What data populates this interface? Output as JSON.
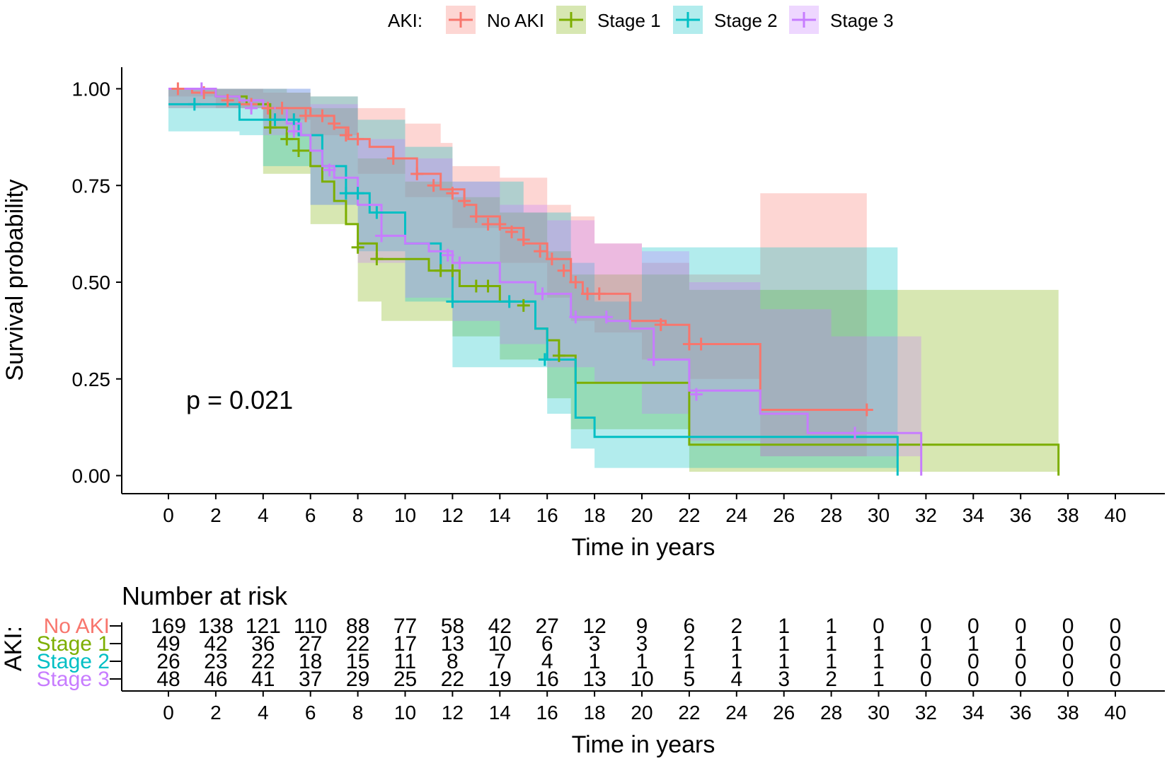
{
  "chart_data": {
    "type": "line",
    "subtype": "kaplan-meier",
    "legend": {
      "title": "AKI:",
      "position": "top",
      "entries": [
        "No AKI",
        "Stage 1",
        "Stage 2",
        "Stage 3"
      ]
    },
    "ylabel": "Survival probability",
    "xlabel": "Time in years",
    "xlim": [
      0,
      40
    ],
    "ylim": [
      0,
      1
    ],
    "xticks": [
      "0",
      "2",
      "4",
      "6",
      "8",
      "10",
      "12",
      "14",
      "16",
      "18",
      "20",
      "22",
      "24",
      "26",
      "28",
      "30",
      "32",
      "34",
      "36",
      "38",
      "40"
    ],
    "yticks": [
      "0.00",
      "0.25",
      "0.50",
      "0.75",
      "1.00"
    ],
    "annotation": "p = 0.021",
    "series": [
      {
        "name": "No AKI",
        "color": "#F8766D",
        "steps": [
          [
            0,
            1.0
          ],
          [
            1,
            0.99
          ],
          [
            2,
            0.98
          ],
          [
            3,
            0.96
          ],
          [
            4,
            0.95
          ],
          [
            5,
            0.95
          ],
          [
            6,
            0.93
          ],
          [
            7,
            0.9
          ],
          [
            7.6,
            0.87
          ],
          [
            8.5,
            0.85
          ],
          [
            9.5,
            0.82
          ],
          [
            10.5,
            0.78
          ],
          [
            11.5,
            0.74
          ],
          [
            12.5,
            0.7
          ],
          [
            13,
            0.67
          ],
          [
            14,
            0.64
          ],
          [
            15,
            0.6
          ],
          [
            16,
            0.56
          ],
          [
            17,
            0.5
          ],
          [
            17.5,
            0.47
          ],
          [
            19.5,
            0.4
          ],
          [
            21,
            0.39
          ],
          [
            22,
            0.34
          ],
          [
            25,
            0.17
          ],
          [
            29.5,
            0.17
          ]
        ],
        "band_upper": [
          [
            0,
            1.0
          ],
          [
            2,
            1.0
          ],
          [
            4,
            0.99
          ],
          [
            6,
            0.98
          ],
          [
            8,
            0.95
          ],
          [
            10,
            0.91
          ],
          [
            11.5,
            0.86
          ],
          [
            12,
            0.8
          ],
          [
            14,
            0.77
          ],
          [
            16,
            0.7
          ],
          [
            17,
            0.67
          ],
          [
            18,
            0.6
          ],
          [
            20,
            0.55
          ],
          [
            22,
            0.52
          ],
          [
            25,
            0.73
          ],
          [
            29.5,
            0.73
          ]
        ],
        "band_lower": [
          [
            0,
            0.98
          ],
          [
            2,
            0.95
          ],
          [
            4,
            0.92
          ],
          [
            6,
            0.88
          ],
          [
            8,
            0.78
          ],
          [
            10,
            0.72
          ],
          [
            12,
            0.64
          ],
          [
            14,
            0.55
          ],
          [
            16,
            0.46
          ],
          [
            17,
            0.4
          ],
          [
            18,
            0.37
          ],
          [
            20,
            0.3
          ],
          [
            22,
            0.25
          ],
          [
            25,
            0.05
          ],
          [
            29.5,
            0.05
          ]
        ],
        "censors": [
          [
            0.4,
            1.0
          ],
          [
            1.5,
            0.99
          ],
          [
            2.5,
            0.97
          ],
          [
            3.5,
            0.96
          ],
          [
            4.2,
            0.95
          ],
          [
            4.8,
            0.95
          ],
          [
            5.8,
            0.93
          ],
          [
            6.5,
            0.93
          ],
          [
            7,
            0.91
          ],
          [
            7.5,
            0.88
          ],
          [
            8,
            0.87
          ],
          [
            9.5,
            0.82
          ],
          [
            10.5,
            0.78
          ],
          [
            11.2,
            0.75
          ],
          [
            12,
            0.73
          ],
          [
            12.5,
            0.71
          ],
          [
            13,
            0.67
          ],
          [
            13.5,
            0.65
          ],
          [
            14,
            0.65
          ],
          [
            14.5,
            0.63
          ],
          [
            15,
            0.61
          ],
          [
            15.7,
            0.58
          ],
          [
            16.2,
            0.56
          ],
          [
            16.7,
            0.53
          ],
          [
            17.2,
            0.5
          ],
          [
            17.7,
            0.47
          ],
          [
            18.2,
            0.47
          ],
          [
            20.8,
            0.39
          ],
          [
            22,
            0.34
          ],
          [
            22.5,
            0.34
          ],
          [
            29.5,
            0.17
          ]
        ],
        "at_risk": [
          169,
          138,
          121,
          110,
          88,
          77,
          58,
          42,
          27,
          12,
          9,
          6,
          2,
          1,
          1,
          0,
          0,
          0,
          0,
          0,
          0
        ]
      },
      {
        "name": "Stage 1",
        "color": "#7CAE00",
        "steps": [
          [
            0,
            1.0
          ],
          [
            2,
            0.98
          ],
          [
            3.3,
            0.96
          ],
          [
            4.3,
            0.9
          ],
          [
            5,
            0.87
          ],
          [
            5.5,
            0.84
          ],
          [
            6,
            0.8
          ],
          [
            6.5,
            0.76
          ],
          [
            7,
            0.71
          ],
          [
            7.5,
            0.65
          ],
          [
            8,
            0.6
          ],
          [
            8.8,
            0.56
          ],
          [
            11,
            0.53
          ],
          [
            12.3,
            0.49
          ],
          [
            14,
            0.45
          ],
          [
            15.5,
            0.38
          ],
          [
            16,
            0.35
          ],
          [
            16.5,
            0.31
          ],
          [
            17.2,
            0.24
          ],
          [
            22,
            0.08
          ],
          [
            37.6,
            0.08
          ],
          [
            37.6,
            0.0
          ]
        ],
        "band_upper": [
          [
            0,
            1.0
          ],
          [
            4,
            1.0
          ],
          [
            5,
            0.99
          ],
          [
            6,
            0.95
          ],
          [
            8,
            0.82
          ],
          [
            10,
            0.76
          ],
          [
            12,
            0.72
          ],
          [
            14,
            0.68
          ],
          [
            16,
            0.58
          ],
          [
            17,
            0.52
          ],
          [
            22,
            0.48
          ],
          [
            37.6,
            0.48
          ]
        ],
        "band_lower": [
          [
            0,
            0.95
          ],
          [
            4,
            0.78
          ],
          [
            6,
            0.65
          ],
          [
            8,
            0.45
          ],
          [
            9,
            0.4
          ],
          [
            12,
            0.36
          ],
          [
            14,
            0.3
          ],
          [
            16,
            0.2
          ],
          [
            17,
            0.12
          ],
          [
            22,
            0.01
          ],
          [
            37.6,
            0.01
          ]
        ],
        "censors": [
          [
            4.3,
            0.9
          ],
          [
            5,
            0.87
          ],
          [
            5.5,
            0.84
          ],
          [
            8,
            0.59
          ],
          [
            8.8,
            0.56
          ],
          [
            11.5,
            0.53
          ],
          [
            12,
            0.53
          ],
          [
            13,
            0.49
          ],
          [
            13.5,
            0.49
          ],
          [
            15,
            0.44
          ],
          [
            16.5,
            0.31
          ]
        ],
        "at_risk": [
          49,
          42,
          36,
          27,
          22,
          17,
          13,
          10,
          6,
          3,
          3,
          2,
          1,
          1,
          1,
          1,
          1,
          1,
          1,
          0,
          0
        ]
      },
      {
        "name": "Stage 2",
        "color": "#00BFC4",
        "steps": [
          [
            0,
            0.96
          ],
          [
            2,
            0.96
          ],
          [
            3,
            0.92
          ],
          [
            4.3,
            0.92
          ],
          [
            5.5,
            0.88
          ],
          [
            6.5,
            0.8
          ],
          [
            7.5,
            0.73
          ],
          [
            8.5,
            0.68
          ],
          [
            10,
            0.6
          ],
          [
            11.5,
            0.53
          ],
          [
            12,
            0.45
          ],
          [
            15.5,
            0.38
          ],
          [
            16,
            0.3
          ],
          [
            17.2,
            0.15
          ],
          [
            18,
            0.1
          ],
          [
            30.8,
            0.1
          ],
          [
            30.8,
            0.0
          ]
        ],
        "band_upper": [
          [
            0,
            1.0
          ],
          [
            5,
            1.0
          ],
          [
            6,
            0.98
          ],
          [
            8,
            0.92
          ],
          [
            10,
            0.85
          ],
          [
            12,
            0.76
          ],
          [
            15,
            0.68
          ],
          [
            17,
            0.55
          ],
          [
            18,
            0.45
          ],
          [
            20,
            0.59
          ],
          [
            30.8,
            0.59
          ]
        ],
        "band_lower": [
          [
            0,
            0.89
          ],
          [
            3,
            0.88
          ],
          [
            4,
            0.8
          ],
          [
            6,
            0.7
          ],
          [
            8,
            0.58
          ],
          [
            10,
            0.45
          ],
          [
            12,
            0.28
          ],
          [
            16,
            0.16
          ],
          [
            17,
            0.07
          ],
          [
            18,
            0.02
          ],
          [
            30.8,
            0.02
          ]
        ],
        "censors": [
          [
            1.1,
            0.96
          ],
          [
            4.5,
            0.92
          ],
          [
            5.3,
            0.92
          ],
          [
            7.5,
            0.73
          ],
          [
            8,
            0.73
          ],
          [
            8.8,
            0.68
          ],
          [
            12,
            0.45
          ],
          [
            14.4,
            0.45
          ],
          [
            15.9,
            0.3
          ]
        ],
        "at_risk": [
          26,
          23,
          22,
          18,
          15,
          11,
          8,
          7,
          4,
          1,
          1,
          1,
          1,
          1,
          1,
          1,
          0,
          0,
          0,
          0,
          0
        ]
      },
      {
        "name": "Stage 3",
        "color": "#C77CFF",
        "steps": [
          [
            0,
            1.0
          ],
          [
            2,
            0.98
          ],
          [
            3,
            0.97
          ],
          [
            4,
            0.95
          ],
          [
            5,
            0.91
          ],
          [
            5.6,
            0.88
          ],
          [
            6,
            0.84
          ],
          [
            6.5,
            0.8
          ],
          [
            7,
            0.77
          ],
          [
            8,
            0.7
          ],
          [
            9,
            0.62
          ],
          [
            10,
            0.6
          ],
          [
            11,
            0.58
          ],
          [
            12,
            0.55
          ],
          [
            14,
            0.5
          ],
          [
            15.5,
            0.47
          ],
          [
            17,
            0.41
          ],
          [
            18.5,
            0.4
          ],
          [
            19.5,
            0.38
          ],
          [
            20.5,
            0.3
          ],
          [
            22,
            0.22
          ],
          [
            25,
            0.16
          ],
          [
            27,
            0.11
          ],
          [
            31.8,
            0.11
          ],
          [
            31.8,
            0.0
          ]
        ],
        "band_upper": [
          [
            0,
            1.0
          ],
          [
            4,
            1.0
          ],
          [
            6,
            0.96
          ],
          [
            8,
            0.87
          ],
          [
            10,
            0.82
          ],
          [
            12,
            0.76
          ],
          [
            14,
            0.7
          ],
          [
            16,
            0.66
          ],
          [
            18,
            0.6
          ],
          [
            20,
            0.58
          ],
          [
            22,
            0.5
          ],
          [
            25,
            0.43
          ],
          [
            28,
            0.36
          ],
          [
            31.8,
            0.36
          ]
        ],
        "band_lower": [
          [
            0,
            0.95
          ],
          [
            4,
            0.88
          ],
          [
            6,
            0.7
          ],
          [
            8,
            0.55
          ],
          [
            10,
            0.46
          ],
          [
            12,
            0.4
          ],
          [
            14,
            0.34
          ],
          [
            16,
            0.28
          ],
          [
            18,
            0.24
          ],
          [
            20,
            0.16
          ],
          [
            22,
            0.09
          ],
          [
            25,
            0.05
          ],
          [
            31.8,
            0.05
          ]
        ],
        "censors": [
          [
            1.4,
            1.0
          ],
          [
            3.5,
            0.95
          ],
          [
            5.3,
            0.89
          ],
          [
            6.8,
            0.79
          ],
          [
            9,
            0.62
          ],
          [
            11.8,
            0.57
          ],
          [
            12.3,
            0.55
          ],
          [
            15.8,
            0.47
          ],
          [
            17.2,
            0.41
          ],
          [
            18.5,
            0.41
          ],
          [
            20.5,
            0.3
          ],
          [
            22.3,
            0.21
          ],
          [
            29,
            0.11
          ]
        ],
        "at_risk": [
          48,
          46,
          41,
          37,
          29,
          25,
          22,
          19,
          16,
          13,
          10,
          5,
          4,
          3,
          2,
          1,
          0,
          0,
          0,
          0,
          0
        ]
      }
    ],
    "risk_table": {
      "title": "Number at risk",
      "ylabel": "AKI:",
      "xlabel": "Time in years",
      "times": [
        0,
        2,
        4,
        6,
        8,
        10,
        12,
        14,
        16,
        18,
        20,
        22,
        24,
        26,
        28,
        30,
        32,
        34,
        36,
        38,
        40
      ]
    }
  }
}
